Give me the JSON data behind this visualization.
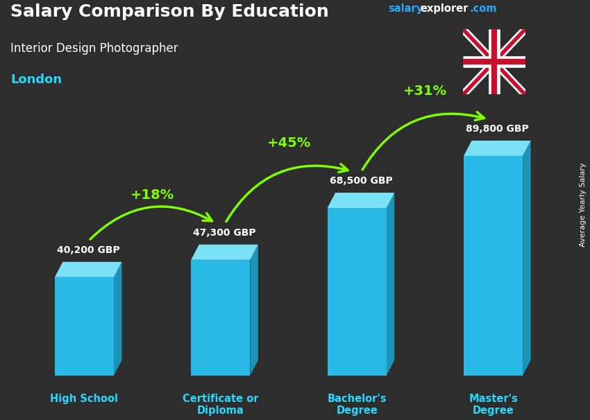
{
  "title_main": "Salary Comparison By Education",
  "title_sub": "Interior Design Photographer",
  "title_location": "London",
  "ylabel_rotated": "Average Yearly Salary",
  "categories": [
    "High School",
    "Certificate or\nDiploma",
    "Bachelor's\nDegree",
    "Master's\nDegree"
  ],
  "values": [
    40200,
    47300,
    68500,
    89800
  ],
  "value_labels": [
    "40,200 GBP",
    "47,300 GBP",
    "68,500 GBP",
    "89,800 GBP"
  ],
  "pct_labels": [
    "+18%",
    "+45%",
    "+31%"
  ],
  "bar_front_color": "#29c5f6",
  "bar_top_color": "#7de8ff",
  "bar_side_color": "#1a9ec4",
  "bg_color": "#2d2d2d",
  "text_color_white": "#ffffff",
  "text_color_cyan": "#29d8ff",
  "text_color_green": "#80ff00",
  "brand_color_salary": "#29aaff",
  "brand_color_explorer": "#ffffff",
  "brand_color_com": "#29aaff",
  "figsize": [
    8.5,
    6.06
  ],
  "dpi": 100
}
